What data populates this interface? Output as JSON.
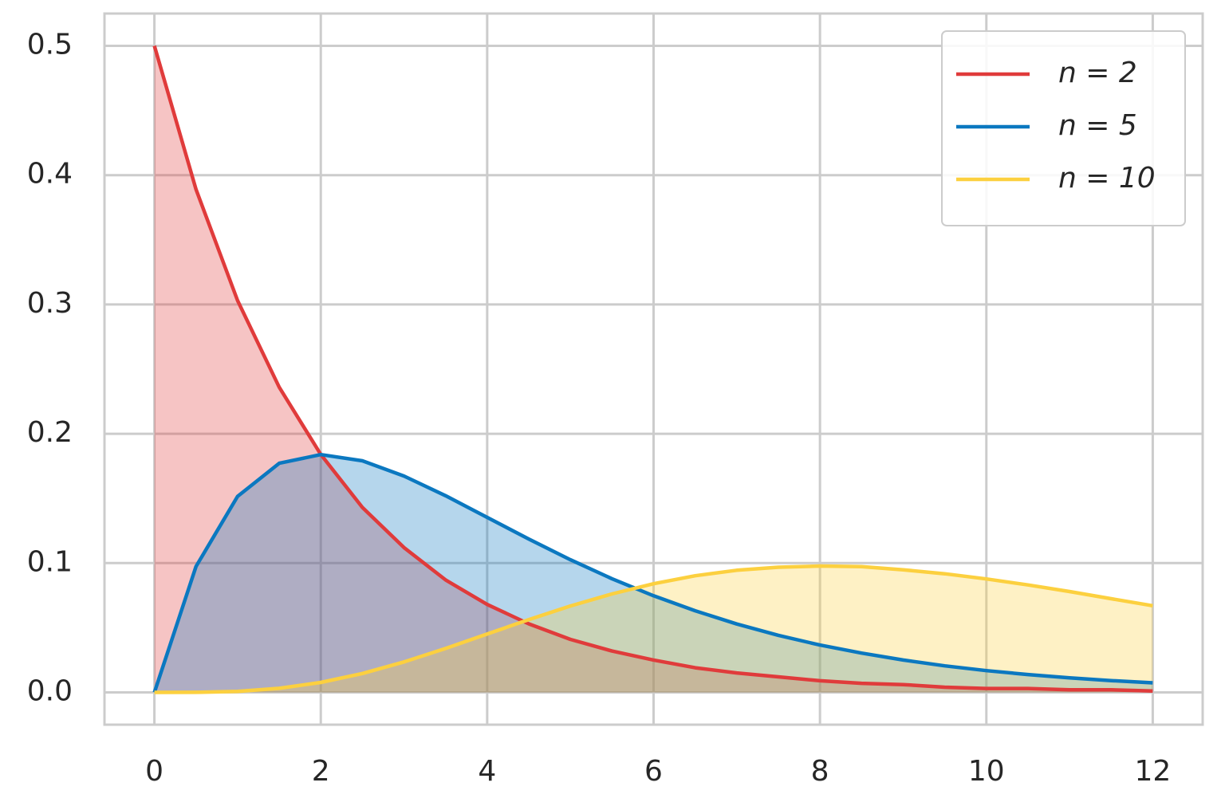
{
  "chart_data": {
    "type": "area",
    "x": [
      0,
      0.5,
      1,
      1.5,
      2,
      2.5,
      3,
      3.5,
      4,
      4.5,
      5,
      5.5,
      6,
      6.5,
      7,
      7.5,
      8,
      8.5,
      9,
      9.5,
      10,
      10.5,
      11,
      11.5,
      12
    ],
    "series": [
      {
        "name": "n = 2",
        "color": "#e03b3b",
        "values": [
          0.5,
          0.389,
          0.303,
          0.236,
          0.184,
          0.143,
          0.112,
          0.087,
          0.068,
          0.053,
          0.041,
          0.032,
          0.025,
          0.019,
          0.015,
          0.012,
          0.009,
          0.007,
          0.006,
          0.004,
          0.003,
          0.003,
          0.002,
          0.002,
          0.001
        ]
      },
      {
        "name": "n = 5",
        "color": "#0b78c0",
        "values": [
          0,
          0.0974,
          0.1516,
          0.1772,
          0.1839,
          0.1791,
          0.1673,
          0.1521,
          0.1353,
          0.1186,
          0.1026,
          0.0879,
          0.0747,
          0.0631,
          0.0529,
          0.0441,
          0.0366,
          0.0304,
          0.025,
          0.0205,
          0.0168,
          0.0138,
          0.0112,
          0.0091,
          0.0074
        ]
      },
      {
        "name": "n = 10",
        "color": "#fcd03f",
        "values": [
          0,
          6e-05,
          0.00079,
          0.00311,
          0.00766,
          0.01457,
          0.02353,
          0.03396,
          0.0451,
          0.05628,
          0.06681,
          0.07614,
          0.08404,
          0.09018,
          0.09441,
          0.0968,
          0.0977,
          0.0972,
          0.0948,
          0.0917,
          0.0877,
          0.0831,
          0.078,
          0.0724,
          0.067
        ]
      }
    ],
    "xlim": [
      -0.6,
      12.6
    ],
    "ylim": [
      -0.025,
      0.525
    ],
    "xticks": [
      0,
      2,
      4,
      6,
      8,
      10,
      12
    ],
    "yticks": [
      {
        "value": 0,
        "label": "0.0"
      },
      0.1,
      0.2,
      0.3,
      0.4,
      0.5
    ],
    "grid": true,
    "legend": "upper right",
    "fill_alpha": 0.3
  }
}
